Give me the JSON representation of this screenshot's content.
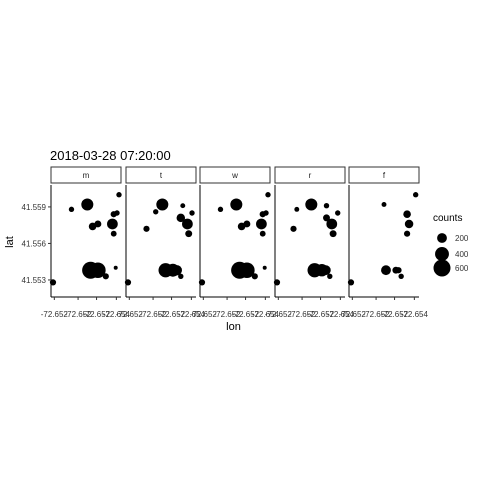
{
  "chart_data": {
    "type": "scatter",
    "title": "2018-03-28 07:20:00",
    "xlabel": "lon",
    "ylabel": "lat",
    "x_ticks": [
      "-72.652",
      "-72.652",
      "-72.652",
      "-72.654"
    ],
    "y_ticks": [
      "41.553",
      "41.556",
      "41.559"
    ],
    "xlim": [
      0,
      1
    ],
    "ylim": [
      41.5516,
      41.5608
    ],
    "facets": [
      {
        "label": "m",
        "points": [
          {
            "x": 0.0,
            "y": 41.5528,
            "size": 80
          },
          {
            "x": 0.28,
            "y": 41.5588,
            "size": 60
          },
          {
            "x": 0.52,
            "y": 41.5592,
            "size": 300
          },
          {
            "x": 0.6,
            "y": 41.5574,
            "size": 120
          },
          {
            "x": 0.68,
            "y": 41.5576,
            "size": 100
          },
          {
            "x": 0.92,
            "y": 41.5584,
            "size": 80
          },
          {
            "x": 0.97,
            "y": 41.5585,
            "size": 60
          },
          {
            "x": 0.9,
            "y": 41.5576,
            "size": 240
          },
          {
            "x": 1.0,
            "y": 41.56,
            "size": 60
          },
          {
            "x": 0.92,
            "y": 41.5568,
            "size": 70
          },
          {
            "x": 0.57,
            "y": 41.5538,
            "size": 600
          },
          {
            "x": 0.68,
            "y": 41.5538,
            "size": 500
          },
          {
            "x": 0.8,
            "y": 41.5533,
            "size": 80
          },
          {
            "x": 0.95,
            "y": 41.554,
            "size": 30
          }
        ]
      },
      {
        "label": "t",
        "points": [
          {
            "x": 0.0,
            "y": 41.5528,
            "size": 80
          },
          {
            "x": 0.28,
            "y": 41.5572,
            "size": 80
          },
          {
            "x": 0.52,
            "y": 41.5592,
            "size": 300
          },
          {
            "x": 0.42,
            "y": 41.5586,
            "size": 60
          },
          {
            "x": 0.83,
            "y": 41.5591,
            "size": 50
          },
          {
            "x": 0.8,
            "y": 41.5581,
            "size": 150
          },
          {
            "x": 0.97,
            "y": 41.5585,
            "size": 60
          },
          {
            "x": 0.9,
            "y": 41.5576,
            "size": 240
          },
          {
            "x": 0.92,
            "y": 41.5568,
            "size": 100
          },
          {
            "x": 0.57,
            "y": 41.5538,
            "size": 420
          },
          {
            "x": 0.68,
            "y": 41.5538,
            "size": 350
          },
          {
            "x": 0.74,
            "y": 41.5538,
            "size": 220
          },
          {
            "x": 0.8,
            "y": 41.5533,
            "size": 60
          }
        ]
      },
      {
        "label": "w",
        "points": [
          {
            "x": 0.0,
            "y": 41.5528,
            "size": 80
          },
          {
            "x": 0.28,
            "y": 41.5588,
            "size": 60
          },
          {
            "x": 0.52,
            "y": 41.5592,
            "size": 300
          },
          {
            "x": 0.6,
            "y": 41.5574,
            "size": 120
          },
          {
            "x": 0.68,
            "y": 41.5576,
            "size": 100
          },
          {
            "x": 0.92,
            "y": 41.5584,
            "size": 80
          },
          {
            "x": 0.97,
            "y": 41.5585,
            "size": 60
          },
          {
            "x": 0.9,
            "y": 41.5576,
            "size": 240
          },
          {
            "x": 1.0,
            "y": 41.56,
            "size": 60
          },
          {
            "x": 0.92,
            "y": 41.5568,
            "size": 70
          },
          {
            "x": 0.57,
            "y": 41.5538,
            "size": 600
          },
          {
            "x": 0.68,
            "y": 41.5538,
            "size": 500
          },
          {
            "x": 0.8,
            "y": 41.5533,
            "size": 80
          },
          {
            "x": 0.95,
            "y": 41.554,
            "size": 30
          }
        ]
      },
      {
        "label": "r",
        "points": [
          {
            "x": 0.0,
            "y": 41.5528,
            "size": 80
          },
          {
            "x": 0.25,
            "y": 41.5572,
            "size": 80
          },
          {
            "x": 0.3,
            "y": 41.5588,
            "size": 50
          },
          {
            "x": 0.52,
            "y": 41.5592,
            "size": 300
          },
          {
            "x": 0.75,
            "y": 41.5591,
            "size": 60
          },
          {
            "x": 0.75,
            "y": 41.5581,
            "size": 100
          },
          {
            "x": 0.83,
            "y": 41.5576,
            "size": 240
          },
          {
            "x": 0.92,
            "y": 41.5585,
            "size": 60
          },
          {
            "x": 0.85,
            "y": 41.5568,
            "size": 100
          },
          {
            "x": 0.57,
            "y": 41.5538,
            "size": 420
          },
          {
            "x": 0.68,
            "y": 41.5538,
            "size": 320
          },
          {
            "x": 0.74,
            "y": 41.5538,
            "size": 200
          },
          {
            "x": 0.8,
            "y": 41.5533,
            "size": 60
          }
        ]
      },
      {
        "label": "f",
        "points": [
          {
            "x": 0.0,
            "y": 41.5528,
            "size": 80
          },
          {
            "x": 0.5,
            "y": 41.5592,
            "size": 50
          },
          {
            "x": 0.85,
            "y": 41.5584,
            "size": 120
          },
          {
            "x": 0.88,
            "y": 41.5576,
            "size": 150
          },
          {
            "x": 0.98,
            "y": 41.56,
            "size": 60
          },
          {
            "x": 0.85,
            "y": 41.5568,
            "size": 80
          },
          {
            "x": 0.53,
            "y": 41.5538,
            "size": 200
          },
          {
            "x": 0.68,
            "y": 41.5538,
            "size": 100
          },
          {
            "x": 0.72,
            "y": 41.5538,
            "size": 80
          },
          {
            "x": 0.76,
            "y": 41.5533,
            "size": 60
          }
        ]
      }
    ],
    "legend": {
      "title": "counts",
      "entries": [
        {
          "label": "200",
          "size": 200
        },
        {
          "label": "400",
          "size": 400
        },
        {
          "label": "600",
          "size": 600
        }
      ],
      "placement": "right"
    },
    "point_color": "#000000",
    "strip_fill": "#ffffff",
    "grid": false
  }
}
